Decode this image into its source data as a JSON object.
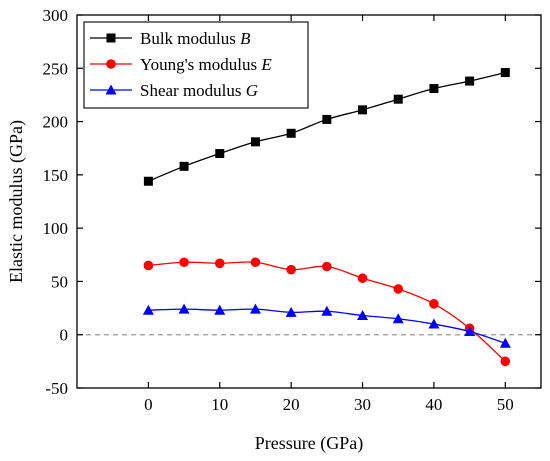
{
  "chart_data": {
    "type": "line",
    "title": "",
    "xlabel": "Pressure (GPa)",
    "ylabel": "Elastic modulus (GPa)",
    "xlim": [
      -10,
      55
    ],
    "ylim": [
      -50,
      300
    ],
    "xticks": [
      0,
      10,
      20,
      30,
      40,
      50
    ],
    "yticks": [
      -50,
      0,
      50,
      100,
      150,
      200,
      250,
      300
    ],
    "reference_line": {
      "y": 0,
      "style": "dashed",
      "color": "#999999"
    },
    "legend": {
      "placement": "top-left"
    },
    "series": [
      {
        "name_main": "Bulk modulus ",
        "name_symbol": "B",
        "color": "#000000",
        "marker": "square",
        "x": [
          0,
          5,
          10,
          15,
          20,
          25,
          30,
          35,
          40,
          45,
          50
        ],
        "y": [
          144,
          158,
          170,
          181,
          189,
          202,
          211,
          221,
          231,
          238,
          246
        ]
      },
      {
        "name_main": "Young's modulus ",
        "name_symbol": "E",
        "color": "#ff0000",
        "marker": "circle",
        "x": [
          0,
          5,
          10,
          15,
          20,
          25,
          30,
          35,
          40,
          45,
          50
        ],
        "y": [
          65,
          68,
          67,
          68,
          61,
          64,
          53,
          43,
          29,
          6,
          -25
        ]
      },
      {
        "name_main": "Shear modulus ",
        "name_symbol": "G",
        "color": "#0000ff",
        "marker": "triangle",
        "x": [
          0,
          5,
          10,
          15,
          20,
          25,
          30,
          35,
          40,
          45,
          50
        ],
        "y": [
          23,
          24,
          23,
          24,
          21,
          22,
          18,
          15,
          10,
          3,
          -8
        ]
      }
    ]
  }
}
